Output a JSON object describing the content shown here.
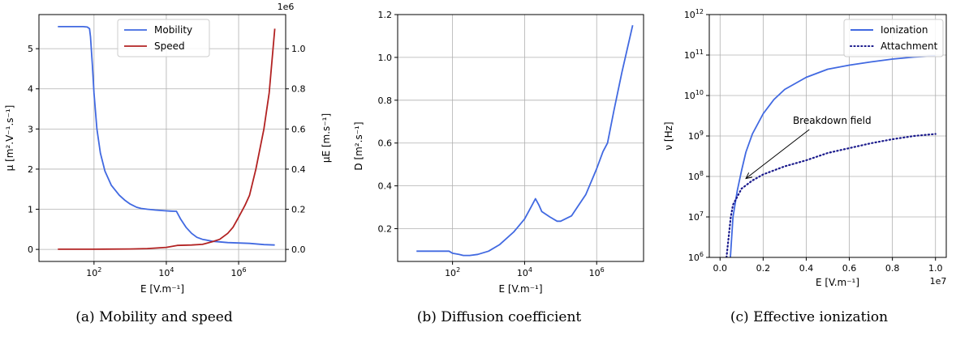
{
  "colors": {
    "blue": "#4169e1",
    "red": "#b22222",
    "navy": "#1a1a8c",
    "grid": "#b0b0b0"
  },
  "chart_data": [
    {
      "id": "a",
      "type": "line",
      "caption": "(a) Mobility and speed",
      "xscale": "log",
      "xlim": [
        3,
        20000000
      ],
      "xlabel": "E [V.m⁻¹]",
      "xticks": [
        {
          "v": 100,
          "base": "10",
          "exp": "2"
        },
        {
          "v": 10000,
          "base": "10",
          "exp": "4"
        },
        {
          "v": 1000000,
          "base": "10",
          "exp": "6"
        }
      ],
      "ylabel_left": "μ [m².V⁻¹.s⁻¹]",
      "ylim_left": [
        -0.3,
        5.85
      ],
      "yticks_left": [
        0,
        1,
        2,
        3,
        4,
        5
      ],
      "ylabel_right": "μE [m.s⁻¹]",
      "ylim_right": [
        -0.06,
        1.17
      ],
      "yticks_right": [
        "0.0",
        "0.2",
        "0.4",
        "0.6",
        "0.8",
        "1.0"
      ],
      "right_offset_label": "1e6",
      "grid": true,
      "legend_position": "top-center",
      "series": [
        {
          "name": "Mobility",
          "axis": "left",
          "color": "#4169e1",
          "style": "solid",
          "x": [
            10,
            50,
            65,
            75,
            80,
            90,
            100,
            120,
            150,
            200,
            300,
            500,
            700,
            1000,
            1500,
            2000,
            3000,
            5000,
            7000,
            10000,
            13000,
            17000,
            19000,
            25000,
            35000,
            50000,
            70000,
            100000,
            200000,
            500000,
            1000000,
            2000000,
            5000000,
            10000000
          ],
          "y": [
            5.55,
            5.55,
            5.54,
            5.5,
            5.3,
            4.6,
            3.9,
            3.0,
            2.4,
            1.95,
            1.6,
            1.35,
            1.23,
            1.13,
            1.05,
            1.02,
            1.0,
            0.98,
            0.97,
            0.96,
            0.955,
            0.95,
            0.95,
            0.75,
            0.55,
            0.4,
            0.3,
            0.25,
            0.2,
            0.17,
            0.16,
            0.15,
            0.12,
            0.11
          ]
        },
        {
          "name": "Speed",
          "axis": "right",
          "color": "#b22222",
          "style": "solid",
          "x": [
            10,
            100,
            1000,
            3000,
            10000,
            20000,
            50000,
            100000,
            200000,
            300000,
            500000,
            700000,
            1000000,
            1500000,
            2000000,
            3000000,
            5000000,
            7000000,
            10000000
          ],
          "y": [
            0.001,
            0.001,
            0.002,
            0.004,
            0.01,
            0.02,
            0.022,
            0.025,
            0.04,
            0.05,
            0.08,
            0.11,
            0.16,
            0.22,
            0.27,
            0.4,
            0.6,
            0.78,
            1.1
          ]
        }
      ]
    },
    {
      "id": "b",
      "type": "line",
      "caption": "(b) Diffusion coefficient",
      "xscale": "log",
      "xlim": [
        3,
        20000000
      ],
      "xlabel": "E [V.m⁻¹]",
      "xticks": [
        {
          "v": 100,
          "base": "10",
          "exp": "2"
        },
        {
          "v": 10000,
          "base": "10",
          "exp": "4"
        },
        {
          "v": 1000000,
          "base": "10",
          "exp": "6"
        }
      ],
      "ylabel_left": "D [m².s⁻¹]",
      "ylim_left": [
        0.047,
        1.2
      ],
      "yticks_left": [
        "0.2",
        "0.4",
        "0.6",
        "0.8",
        "1.0",
        "1.2"
      ],
      "grid": true,
      "series": [
        {
          "color": "#4169e1",
          "style": "solid",
          "x": [
            10,
            50,
            80,
            100,
            150,
            200,
            300,
            500,
            1000,
            2000,
            5000,
            10000,
            15000,
            20000,
            25000,
            30000,
            50000,
            80000,
            100000,
            200000,
            500000,
            1000000,
            1500000,
            2000000,
            3000000,
            5000000,
            10000000
          ],
          "y": [
            0.095,
            0.095,
            0.095,
            0.085,
            0.08,
            0.075,
            0.075,
            0.08,
            0.095,
            0.125,
            0.185,
            0.245,
            0.3,
            0.34,
            0.31,
            0.28,
            0.255,
            0.235,
            0.235,
            0.26,
            0.36,
            0.48,
            0.56,
            0.6,
            0.75,
            0.93,
            1.15
          ]
        }
      ]
    },
    {
      "id": "c",
      "type": "line",
      "caption": "(c) Effective ionization",
      "xscale": "linear",
      "xlim": [
        -0.05,
        1.05
      ],
      "xlabel": "E [V.m⁻¹]",
      "xticks": [
        "0.0",
        "0.2",
        "0.4",
        "0.6",
        "0.8",
        "1.0"
      ],
      "x_offset_label": "1e7",
      "yscale": "log",
      "ylim_log10": [
        6,
        12
      ],
      "ylabel_left": "ν [Hz]",
      "yticks_left": [
        {
          "exp": "6"
        },
        {
          "exp": "7"
        },
        {
          "exp": "8"
        },
        {
          "exp": "9"
        },
        {
          "exp": "10"
        },
        {
          "exp": "11"
        },
        {
          "exp": "12"
        }
      ],
      "grid": true,
      "legend_position": "top-right",
      "annotation": {
        "text": "Breakdown field",
        "text_at": [
          0.52,
          9.3
        ],
        "points_to": [
          0.12,
          7.95
        ]
      },
      "series": [
        {
          "name": "Ionization",
          "color": "#4169e1",
          "style": "solid",
          "x": [
            0.048,
            0.06,
            0.08,
            0.1,
            0.12,
            0.15,
            0.2,
            0.25,
            0.3,
            0.4,
            0.5,
            0.6,
            0.7,
            0.8,
            0.9,
            1.0
          ],
          "y_log10": [
            6.0,
            7.0,
            7.65,
            8.15,
            8.6,
            9.05,
            9.55,
            9.9,
            10.15,
            10.45,
            10.65,
            10.75,
            10.83,
            10.9,
            10.95,
            10.98
          ]
        },
        {
          "name": "Attachment",
          "color": "#1a1a8c",
          "style": "dotted",
          "x": [
            0.03,
            0.05,
            0.06,
            0.08,
            0.1,
            0.15,
            0.2,
            0.3,
            0.4,
            0.5,
            0.6,
            0.7,
            0.8,
            0.9,
            1.0
          ],
          "y_log10": [
            6.0,
            7.0,
            7.3,
            7.5,
            7.7,
            7.9,
            8.05,
            8.25,
            8.4,
            8.58,
            8.7,
            8.82,
            8.92,
            9.0,
            9.05
          ]
        }
      ]
    }
  ]
}
